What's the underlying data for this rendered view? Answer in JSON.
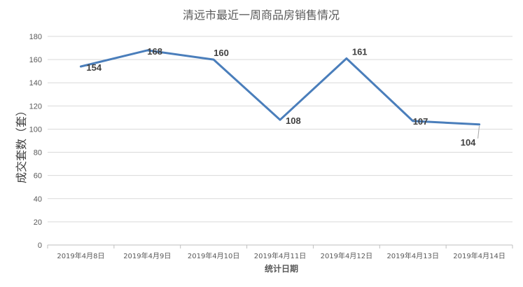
{
  "chart_data": {
    "type": "line",
    "title": "清远市最近一周商品房销售情况",
    "xlabel": "统计日期",
    "ylabel": "成交套数（套）",
    "categories": [
      "2019年4月8日",
      "2019年4月9日",
      "2019年4月10日",
      "2019年4月11日",
      "2019年4月12日",
      "2019年4月13日",
      "2019年4月14日"
    ],
    "series": [
      {
        "values": [
          154,
          168,
          160,
          108,
          161,
          107,
          104
        ],
        "color": "#4a7ebb"
      }
    ],
    "ylim": [
      0,
      180
    ],
    "yticks": [
      0,
      20,
      40,
      60,
      80,
      100,
      120,
      140,
      160,
      180
    ],
    "grid": true,
    "legend": "none",
    "data_labels": true
  }
}
